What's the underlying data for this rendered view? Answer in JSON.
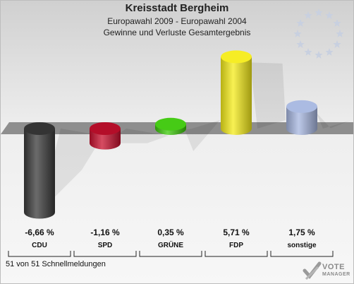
{
  "header": {
    "title": "Kreisstadt Bergheim",
    "subtitle": "Europawahl 2009 - Europawahl 2004",
    "subtitle2": "Gewinne und Verluste Gesamtergebnis"
  },
  "footer": {
    "note": "51 von 51 Schnellmeldungen"
  },
  "logo": {
    "line1": "VOTE",
    "line2": "MANAGER",
    "icon": "vote-check-mark-icon"
  },
  "eu_emblem": {
    "icon": "eu-stars-icon",
    "color": "#c8d0e0"
  },
  "chart_data": {
    "type": "bar",
    "title": "Kreisstadt Bergheim",
    "categories": [
      "CDU",
      "SPD",
      "GRÜNE",
      "FDP",
      "sonstige"
    ],
    "values": [
      -6.66,
      -1.16,
      0.35,
      5.71,
      1.75
    ],
    "value_labels": [
      "-6,66 %",
      "-1,16 %",
      "0,35 %",
      "5,71 %",
      "1,75 %"
    ],
    "colors": [
      "#3a3a3a",
      "#c8102e",
      "#3cc80a",
      "#f5ec1a",
      "#a7b7e0"
    ],
    "ylim": [
      -7,
      6
    ],
    "grid": false,
    "legend": "none"
  }
}
